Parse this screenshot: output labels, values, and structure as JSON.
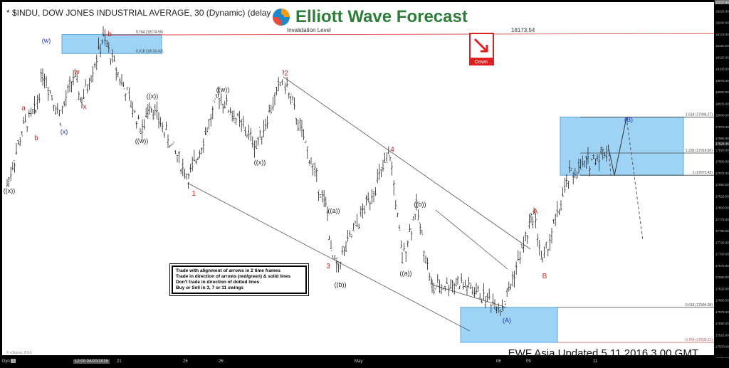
{
  "header": {
    "title": "* $INDU, DOW JONES INDUSTRIAL AVERAGE, 30 (Dynamic) (delay",
    "logo_text": "Elliott Wave Forecast"
  },
  "invalidation": {
    "label": "Invalidation Level",
    "value": "18173.54",
    "color": "#e03030"
  },
  "down_signal": {
    "label": "Down",
    "color": "#e02020"
  },
  "note_lines": [
    "Trade with alignment of arrows in 2 time frames",
    "Trade in direction of arrows (red/green) & solid lines",
    "Don't trade in direction of dotted lines",
    "Buy or Sell in 3, 7 or 11 swings"
  ],
  "footer": "EWF Asia Updated 5.11.2016 3.00 GMT",
  "copyright": "© eSignal, 2016",
  "bottom": {
    "dyn": "Dyn",
    "dyn_btn": "↓",
    "time_labels": [
      "12:00 04/20/2016",
      "21",
      "25",
      "26",
      "May",
      "06",
      "09",
      "11"
    ]
  },
  "colors": {
    "box": "#9fd3f5",
    "box_border": "#5aa9dc",
    "red": "#d42020",
    "blue": "#2233bb",
    "black": "#222222"
  },
  "chart_data": {
    "type": "ohlc",
    "ylim": [
      17475,
      18237.6
    ],
    "y_ticks": [
      "18225.00",
      "18200.00",
      "18175.00",
      "18150.00",
      "18125.00",
      "18100.00",
      "18075.00",
      "18050.00",
      "18025.00",
      "18000.00",
      "17975.00",
      "17950.00",
      "17925.00",
      "17900.00",
      "17875.00",
      "17850.00",
      "17825.00",
      "17800.00",
      "17775.00",
      "17750.00",
      "17725.00",
      "17700.00",
      "17675.00",
      "17650.00",
      "17625.00",
      "17600.00",
      "17575.00",
      "17550.00",
      "17525.00",
      "17500.00",
      "17475.00"
    ],
    "top_value": "18237.60",
    "last_price": "17928.35",
    "fib_levels": [
      {
        "label": "0.764 (18174.56)",
        "price": 18174.56
      },
      {
        "label": "0.618 (18133.42)",
        "price": 18133.42
      },
      {
        "label": "1.618 (17996.27)",
        "price": 17996.27
      },
      {
        "label": "1.236 (17918.50)",
        "price": 17918.5
      },
      {
        "label": "1 (17870.45)",
        "price": 17870.45
      },
      {
        "label": "0.618 (17584.99)",
        "price": 17584.99
      },
      {
        "label": "0.764 (17509.21)",
        "price": 17509.21
      }
    ],
    "pivots": [
      {
        "label": "((x))",
        "price": 17850,
        "color": "black"
      },
      {
        "label": "a",
        "price": 18010,
        "color": "red"
      },
      {
        "label": "b",
        "price": 17975,
        "color": "red"
      },
      {
        "label": "(w)",
        "price": 18095,
        "color": "blue"
      },
      {
        "label": "(x)",
        "price": 17995,
        "color": "blue"
      },
      {
        "label": "w",
        "price": 18085,
        "color": "red"
      },
      {
        "label": "x",
        "price": 18030,
        "color": "red"
      },
      {
        "label": "b",
        "price": 18168,
        "color": "red"
      },
      {
        "label": "((w))",
        "price": 17965,
        "color": "black"
      },
      {
        "label": "((x))",
        "price": 18030,
        "color": "black"
      },
      {
        "label": "1",
        "price": 17862,
        "color": "red"
      },
      {
        "label": "((w))",
        "price": 18043,
        "color": "black"
      },
      {
        "label": "((x))",
        "price": 17935,
        "color": "black"
      },
      {
        "label": "2",
        "price": 18083,
        "color": "red"
      },
      {
        "label": "((a))",
        "price": 17790,
        "color": "black"
      },
      {
        "label": "3",
        "price": 17700,
        "color": "red"
      },
      {
        "label": "((b))",
        "price": 17672,
        "color": "black"
      },
      {
        "label": "4",
        "price": 17915,
        "color": "red"
      },
      {
        "label": "((a))",
        "price": 17690,
        "color": "black"
      },
      {
        "label": "((b))",
        "price": 17800,
        "color": "black"
      },
      {
        "label": "(A)",
        "price": 17585,
        "color": "blue"
      },
      {
        "label": "A",
        "price": 17790,
        "color": "red"
      },
      {
        "label": "B",
        "price": 17680,
        "color": "red"
      },
      {
        "label": "(B)",
        "price": 17995,
        "color": "blue"
      }
    ]
  }
}
